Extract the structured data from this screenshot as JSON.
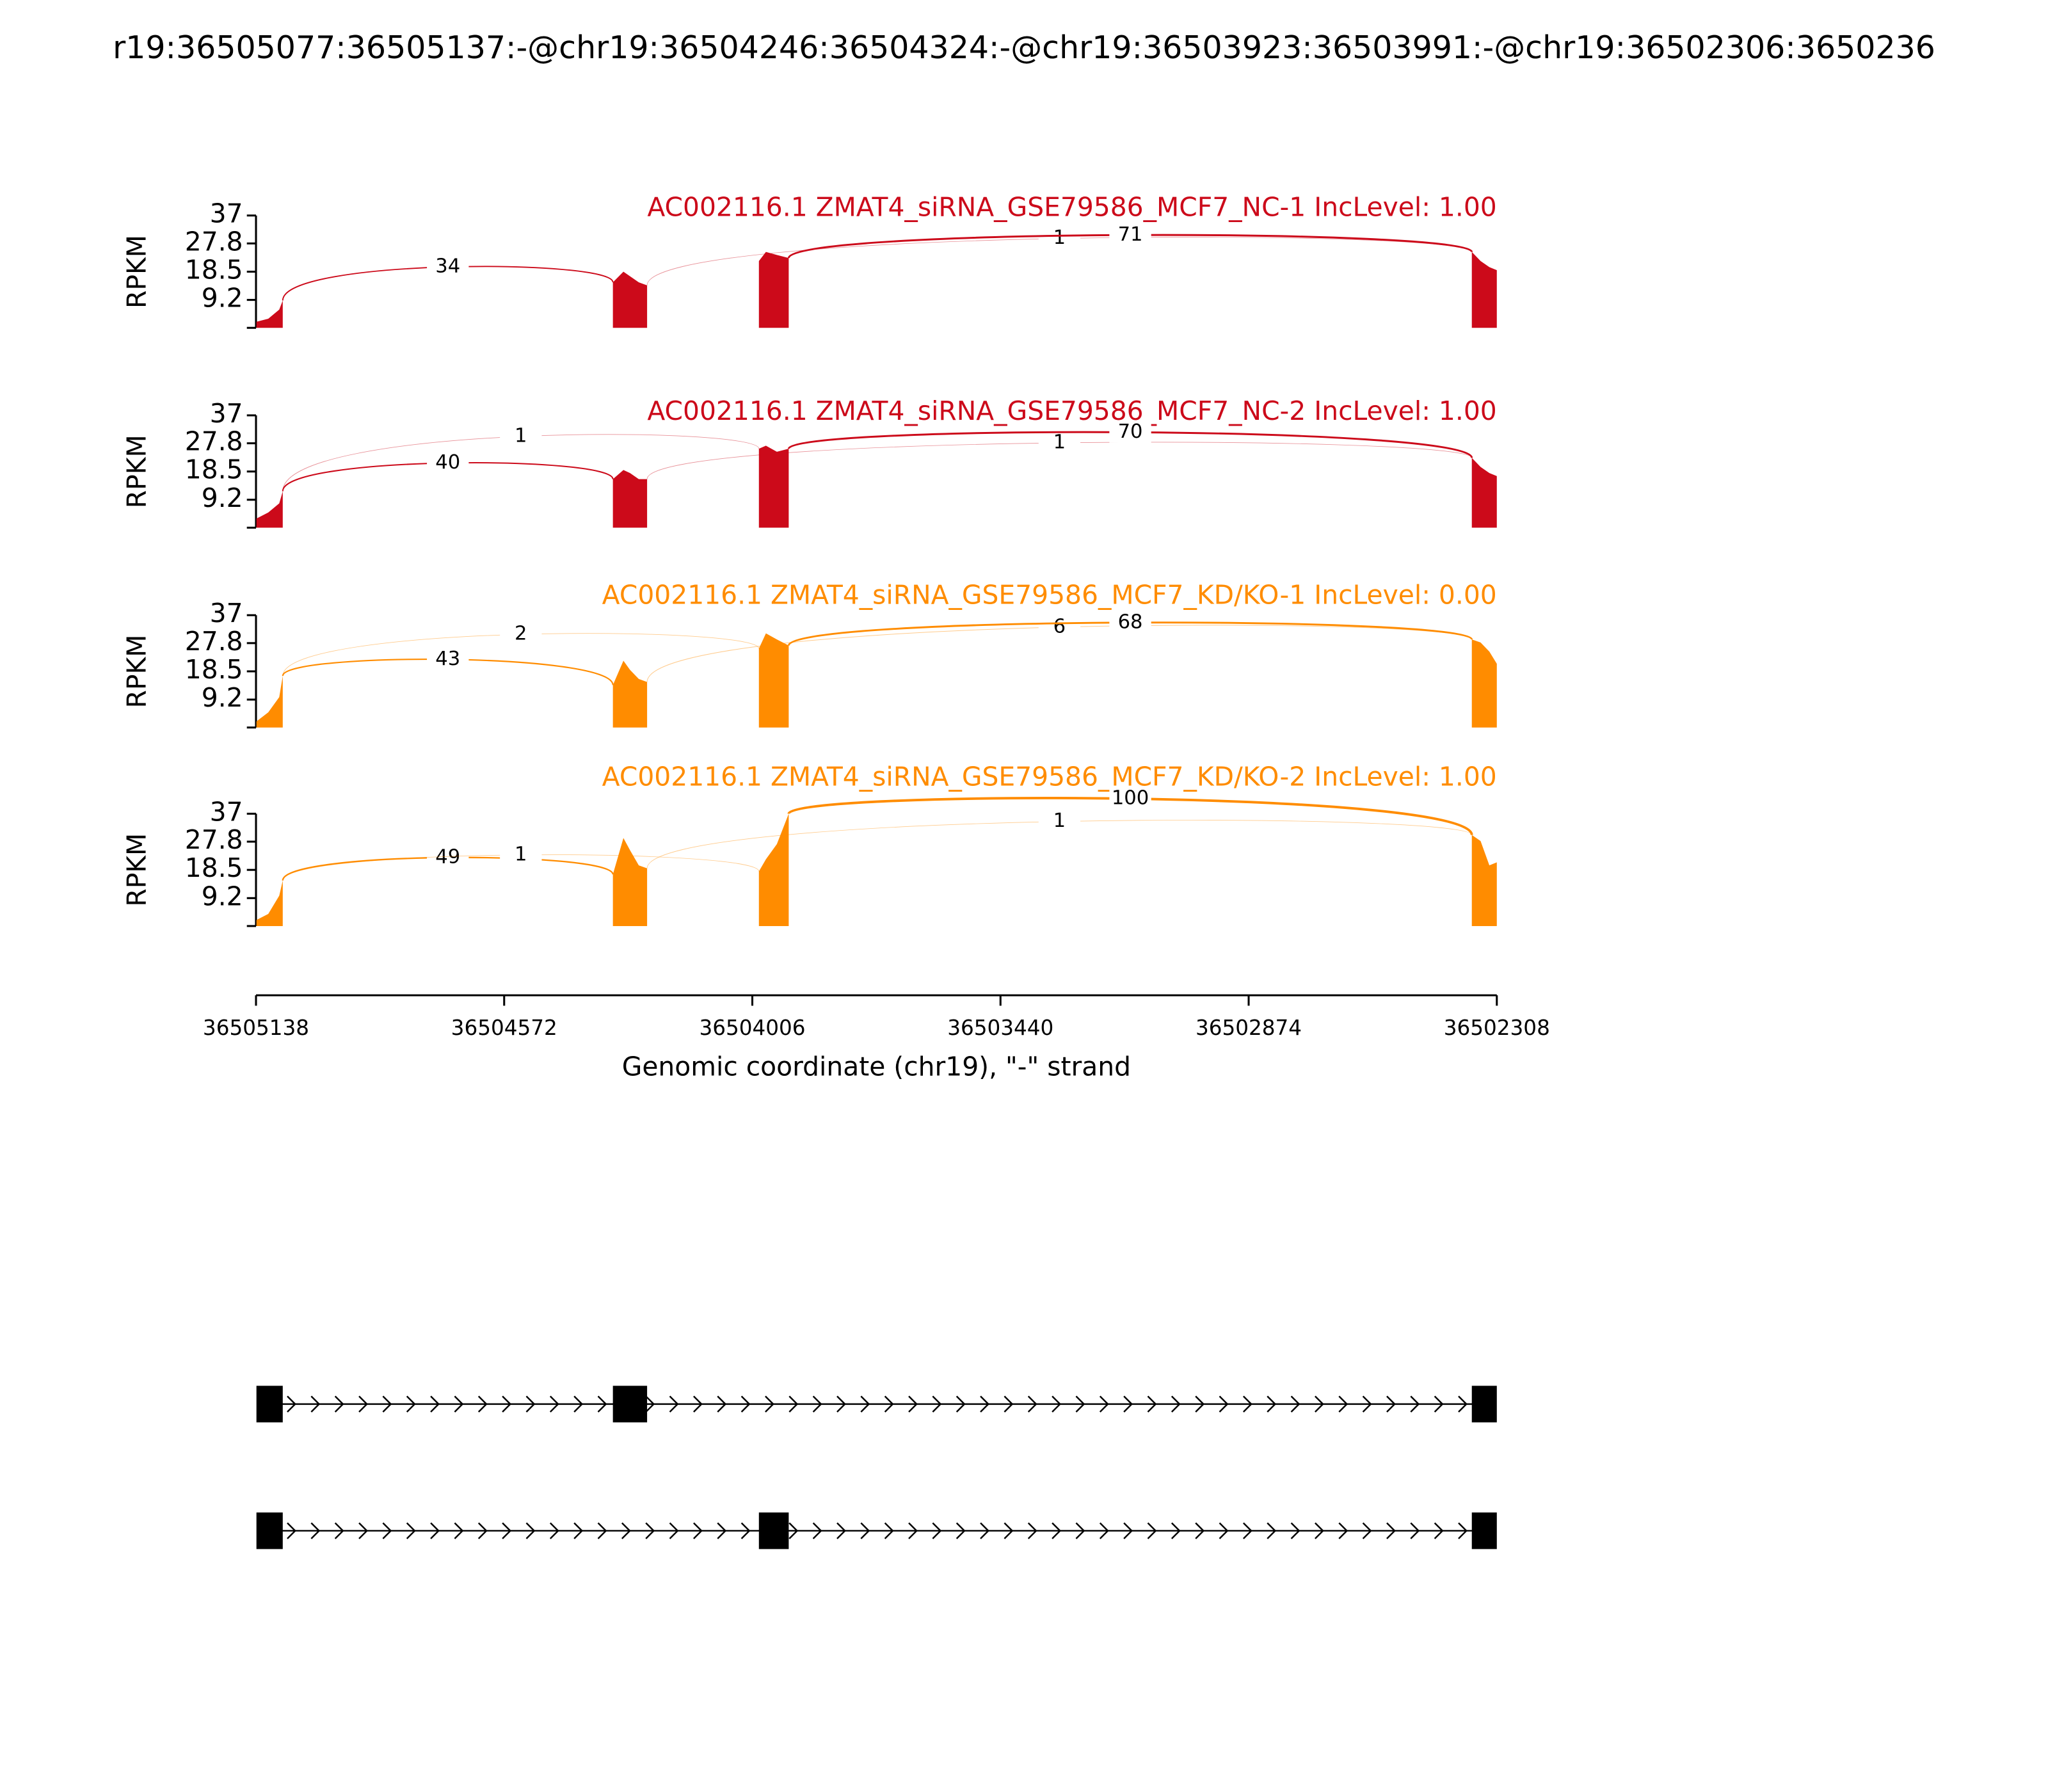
{
  "chart_data": {
    "type": "sashimi",
    "title": "r19:36505077:36505137:-@chr19:36504246:36504324:-@chr19:36503923:36503991:-@chr19:36502306:3650236",
    "xlabel": "Genomic coordinate (chr19), \"-\" strand",
    "ylabel": "RPKM",
    "xlim": [
      36505138,
      36502308
    ],
    "xticks": [
      36505138,
      36504572,
      36504006,
      36503440,
      36502874,
      36502308
    ],
    "ylim": [
      0,
      37
    ],
    "yticks": [
      9.2,
      18.5,
      27.8,
      37
    ],
    "tracks": [
      {
        "name": "AC002116.1 ZMAT4_siRNA_GSE79586_MCF7_NC-1 IncLevel: 1.00",
        "color": "#cc0a1a",
        "coverage": {
          "x": [
            36505137,
            36505110,
            36505085,
            36505077,
            36504700,
            36504324,
            36504300,
            36504285,
            36504265,
            36504246,
            36504120,
            36503991,
            36503975,
            36503950,
            36503923,
            36503150,
            36502365,
            36502345,
            36502325,
            36502308
          ],
          "values": [
            2,
            3,
            6,
            9,
            null,
            15,
            18.5,
            17,
            15,
            14,
            null,
            22,
            25,
            24,
            23,
            null,
            25,
            22,
            20,
            19
          ]
        },
        "junctions": [
          {
            "start": 36505077,
            "end": 36504324,
            "count": 34
          },
          {
            "start": 36504246,
            "end": 36502365,
            "count": 1
          },
          {
            "start": 36503923,
            "end": 36502365,
            "count": 71
          }
        ]
      },
      {
        "name": "AC002116.1 ZMAT4_siRNA_GSE79586_MCF7_NC-2 IncLevel: 1.00",
        "color": "#cc0a1a",
        "coverage": {
          "x": [
            36505137,
            36505110,
            36505085,
            36505077,
            36504700,
            36504324,
            36504300,
            36504285,
            36504265,
            36504246,
            36504120,
            36503991,
            36503975,
            36503950,
            36503923,
            36503150,
            36502365,
            36502345,
            36502325,
            36502308
          ],
          "values": [
            3,
            5,
            8,
            12,
            null,
            16,
            19,
            18,
            16,
            16,
            null,
            26,
            27,
            25,
            26,
            null,
            23,
            20,
            18,
            17
          ]
        },
        "junctions": [
          {
            "start": 36505077,
            "end": 36504324,
            "count": 40
          },
          {
            "start": 36505077,
            "end": 36503991,
            "count": 1
          },
          {
            "start": 36504246,
            "end": 36502365,
            "count": 1
          },
          {
            "start": 36503923,
            "end": 36502365,
            "count": 70
          }
        ]
      },
      {
        "name": "AC002116.1 ZMAT4_siRNA_GSE79586_MCF7_KD/KO-1 IncLevel: 0.00",
        "color": "#ff8c00",
        "coverage": {
          "x": [
            36505137,
            36505110,
            36505085,
            36505077,
            36504700,
            36504324,
            36504300,
            36504285,
            36504265,
            36504246,
            36504120,
            36503991,
            36503975,
            36503950,
            36503923,
            36503150,
            36502365,
            36502345,
            36502325,
            36502308
          ],
          "values": [
            2,
            5,
            10,
            17,
            null,
            14,
            22,
            19,
            16,
            15,
            null,
            26,
            31,
            29,
            27,
            null,
            29,
            28,
            25,
            21
          ]
        },
        "junctions": [
          {
            "start": 36505077,
            "end": 36504324,
            "count": 43
          },
          {
            "start": 36505077,
            "end": 36503991,
            "count": 2
          },
          {
            "start": 36504246,
            "end": 36502365,
            "count": 6
          },
          {
            "start": 36503923,
            "end": 36502365,
            "count": 68
          }
        ]
      },
      {
        "name": "AC002116.1 ZMAT4_siRNA_GSE79586_MCF7_KD/KO-2 IncLevel: 1.00",
        "color": "#ff8c00",
        "coverage": {
          "x": [
            36505137,
            36505110,
            36505085,
            36505077,
            36504700,
            36504324,
            36504300,
            36504285,
            36504265,
            36504246,
            36504120,
            36503991,
            36503975,
            36503950,
            36503923,
            36503150,
            36502365,
            36502345,
            36502325,
            36502308
          ],
          "values": [
            2,
            4,
            10,
            15,
            null,
            17,
            29,
            25,
            20,
            19,
            null,
            18,
            22,
            27,
            37,
            null,
            30,
            28,
            20,
            21
          ]
        },
        "junctions": [
          {
            "start": 36505077,
            "end": 36504324,
            "count": 49
          },
          {
            "start": 36505077,
            "end": 36503991,
            "count": 1
          },
          {
            "start": 36504246,
            "end": 36502365,
            "count": 1
          },
          {
            "start": 36503923,
            "end": 36502365,
            "count": 100
          }
        ]
      }
    ],
    "transcripts": [
      {
        "exons": [
          [
            36505137,
            36505077
          ],
          [
            36504324,
            36504246
          ],
          [
            36502365,
            36502308
          ]
        ]
      },
      {
        "exons": [
          [
            36505137,
            36505077
          ],
          [
            36503991,
            36503923
          ],
          [
            36502365,
            36502308
          ]
        ]
      }
    ]
  }
}
